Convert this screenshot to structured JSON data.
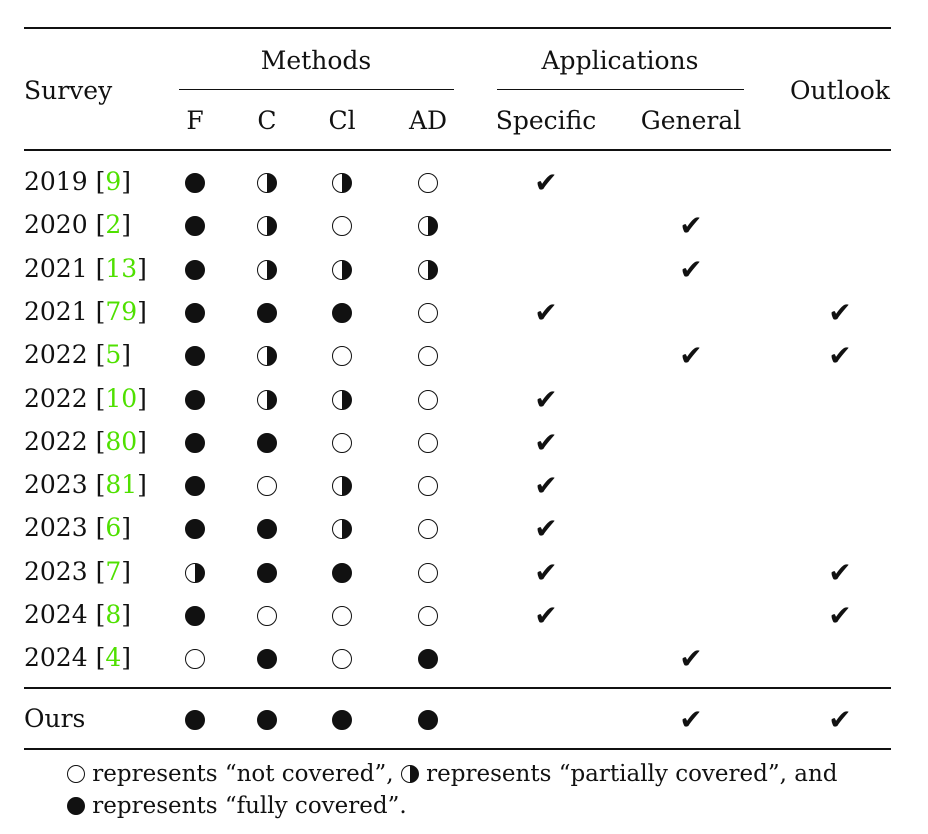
{
  "header": {
    "survey": "Survey",
    "methods": "Methods",
    "applications": "Applications",
    "outlook": "Outlook",
    "method_cols": [
      "F",
      "C",
      "Cl",
      "AD"
    ],
    "app_cols": [
      "Specific",
      "General"
    ]
  },
  "check_glyph": "✔",
  "rows": [
    {
      "year": "2019",
      "ref": "9",
      "methods": [
        "full",
        "half",
        "half",
        "none"
      ],
      "specific": true,
      "general": false,
      "outlook": false
    },
    {
      "year": "2020",
      "ref": "2",
      "methods": [
        "full",
        "half",
        "none",
        "half"
      ],
      "specific": false,
      "general": true,
      "outlook": false
    },
    {
      "year": "2021",
      "ref": "13",
      "methods": [
        "full",
        "half",
        "half",
        "half"
      ],
      "specific": false,
      "general": true,
      "outlook": false
    },
    {
      "year": "2021",
      "ref": "79",
      "methods": [
        "full",
        "full",
        "full",
        "none"
      ],
      "specific": true,
      "general": false,
      "outlook": true
    },
    {
      "year": "2022",
      "ref": "5",
      "methods": [
        "full",
        "half",
        "none",
        "none"
      ],
      "specific": false,
      "general": true,
      "outlook": true
    },
    {
      "year": "2022",
      "ref": "10",
      "methods": [
        "full",
        "half",
        "half",
        "none"
      ],
      "specific": true,
      "general": false,
      "outlook": false
    },
    {
      "year": "2022",
      "ref": "80",
      "methods": [
        "full",
        "full",
        "none",
        "none"
      ],
      "specific": true,
      "general": false,
      "outlook": false
    },
    {
      "year": "2023",
      "ref": "81",
      "methods": [
        "full",
        "none",
        "half",
        "none"
      ],
      "specific": true,
      "general": false,
      "outlook": false
    },
    {
      "year": "2023",
      "ref": "6",
      "methods": [
        "full",
        "full",
        "half",
        "none"
      ],
      "specific": true,
      "general": false,
      "outlook": false
    },
    {
      "year": "2023",
      "ref": "7",
      "methods": [
        "half",
        "full",
        "full",
        "none"
      ],
      "specific": true,
      "general": false,
      "outlook": true
    },
    {
      "year": "2024",
      "ref": "8",
      "methods": [
        "full",
        "none",
        "none",
        "none"
      ],
      "specific": true,
      "general": false,
      "outlook": true
    },
    {
      "year": "2024",
      "ref": "4",
      "methods": [
        "none",
        "full",
        "none",
        "full"
      ],
      "specific": false,
      "general": true,
      "outlook": false
    }
  ],
  "ours": {
    "label": "Ours",
    "methods": [
      "full",
      "full",
      "full",
      "full"
    ],
    "specific": false,
    "general": true,
    "outlook": true
  },
  "legend": {
    "part1": " represents “not covered”, ",
    "part2": " represents “partially covered”, and",
    "part3": " represents “fully covered”."
  }
}
